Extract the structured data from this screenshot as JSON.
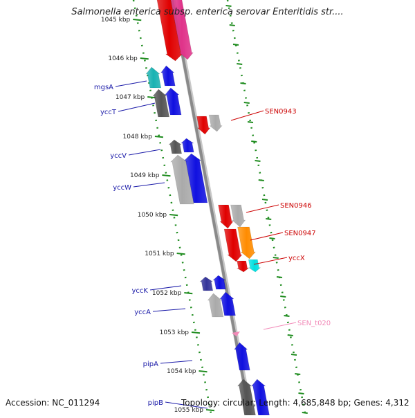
{
  "title": "Salmonella enterica subsp. enterica serovar Enteritidis str....",
  "accession": "Accession: NC_011294",
  "summary": "Topology: circular; Length: 4,685,848 bp; Genes: 4,312",
  "ticks": [
    "1045 kbp",
    "1046 kbp",
    "1047 kbp",
    "1048 kbp",
    "1049 kbp",
    "1050 kbp",
    "1051 kbp",
    "1052 kbp",
    "1053 kbp",
    "1054 kbp",
    "1055 kbp"
  ],
  "left_labels": [
    "mgsA",
    "yccT",
    "yccV",
    "yccW",
    "yccK",
    "yccA",
    "pipA",
    "pipB"
  ],
  "right_labels": [
    "SEN0943",
    "SEN0946",
    "SEN0947",
    "yccX",
    "SEN_t020"
  ],
  "colors": {
    "left_label": "#1a1aa8",
    "right_label": "#cc0000",
    "trna_label": "#f28ab8",
    "backbone": "#8a8a8a",
    "tick_ring": "#1f8c1f"
  }
}
